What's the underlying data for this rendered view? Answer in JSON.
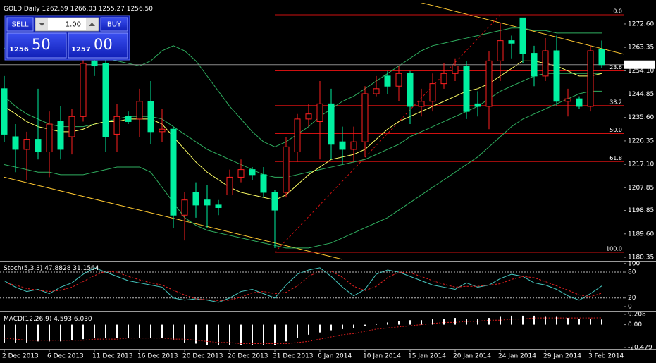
{
  "chart_data": [
    {
      "type": "candlestick",
      "title": "GOLD,Daily",
      "header_values": [
        "1262.69",
        "1266.03",
        "1255.27",
        "1256.50"
      ],
      "categories": [
        "2 Dec 2013",
        null,
        null,
        null,
        "6 Dec 2013",
        null,
        null,
        null,
        "11 Dec 2013",
        null,
        null,
        null,
        "16 Dec 2013",
        null,
        null,
        null,
        "20 Dec 2013",
        null,
        null,
        null,
        "26 Dec 2013",
        null,
        null,
        null,
        "31 Dec 2013",
        null,
        null,
        null,
        "6 Jan 2014",
        null,
        null,
        null,
        "10 Jan 2014",
        null,
        null,
        null,
        "15 Jan 2014",
        null,
        null,
        null,
        "20 Jan 2014",
        null,
        null,
        null,
        "24 Jan 2014",
        null,
        null,
        null,
        "29 Jan 2014",
        null,
        null,
        null,
        "3 Feb 2014",
        null
      ],
      "open": [
        1247,
        1228,
        1223,
        1227,
        1222,
        1234,
        1228,
        1236,
        1258,
        1257,
        1229,
        1236,
        1235,
        1242,
        1230,
        1231,
        1197,
        1206,
        1203,
        1201,
        1205,
        1212,
        1215,
        1213,
        1206,
        1206,
        1222,
        1235,
        1234,
        1241,
        1226,
        1223,
        1226,
        1245,
        1252,
        1248,
        1253,
        1240,
        1242,
        1249,
        1253,
        1256,
        1241,
        1240,
        1258,
        1266,
        1275,
        1261,
        1252,
        1262,
        1242,
        1243,
        1240,
        1262.69
      ],
      "high": [
        1252,
        1233,
        1230,
        1247,
        1238,
        1240,
        1239,
        1266,
        1262,
        1259,
        1241,
        1238,
        1247,
        1250,
        1239,
        1232,
        1206,
        1210,
        1209,
        1203,
        1215,
        1219,
        1216,
        1216,
        1207,
        1228,
        1237,
        1241,
        1250,
        1247,
        1232,
        1232,
        1248,
        1252,
        1254,
        1256,
        1254,
        1247,
        1253,
        1257,
        1259,
        1258,
        1246,
        1262,
        1273,
        1268,
        1275,
        1264,
        1267,
        1268,
        1247,
        1244,
        1264,
        1266.03
      ],
      "low": [
        1226,
        1214,
        1211,
        1219,
        1212,
        1219,
        1221,
        1234,
        1252,
        1222,
        1222,
        1233,
        1228,
        1225,
        1226,
        1192,
        1187,
        1196,
        1192,
        1197,
        1205,
        1210,
        1211,
        1204,
        1184,
        1204,
        1218,
        1232,
        1219,
        1219,
        1217,
        1218,
        1220,
        1244,
        1245,
        1242,
        1233,
        1236,
        1238,
        1247,
        1250,
        1235,
        1236,
        1231,
        1250,
        1259,
        1257,
        1248,
        1250,
        1240,
        1236,
        1239,
        1238,
        1255.27
      ],
      "close": [
        1229,
        1223,
        1227,
        1222,
        1233,
        1223,
        1236,
        1257,
        1256,
        1228,
        1236,
        1234,
        1242,
        1230,
        1231,
        1197,
        1203,
        1201,
        1201,
        1200,
        1212,
        1215,
        1213,
        1206,
        1199,
        1224,
        1235,
        1237,
        1241,
        1225,
        1223,
        1226,
        1245,
        1247,
        1248,
        1253,
        1240,
        1242,
        1249,
        1253,
        1256,
        1238,
        1240,
        1258,
        1266,
        1265,
        1261,
        1252,
        1262,
        1242,
        1243,
        1240,
        1262,
        1256.5
      ],
      "up_color": "#ff2020",
      "down_color": "#00f0a0",
      "bands": {
        "color": "#2fae5f",
        "upper": [
          1263,
          1263,
          1262,
          1262,
          1262,
          1261,
          1261,
          1261,
          1260,
          1259,
          1258,
          1257,
          1256,
          1258,
          1262,
          1264,
          1262,
          1258,
          1252,
          1246,
          1240,
          1235,
          1230,
          1226,
          1224,
          1226,
          1229,
          1232,
          1236,
          1239,
          1242,
          1244,
          1247,
          1250,
          1253,
          1256,
          1259,
          1262,
          1264,
          1265,
          1266,
          1267,
          1268,
          1269,
          1270,
          1271,
          1271,
          1270,
          1270,
          1269,
          1269,
          1269,
          1269,
          1269
        ],
        "middle": [
          1244,
          1240,
          1237,
          1235,
          1233,
          1232,
          1232,
          1232,
          1233,
          1234,
          1235,
          1236,
          1236,
          1236,
          1235,
          1232,
          1229,
          1226,
          1223,
          1221,
          1219,
          1217,
          1215,
          1213,
          1212,
          1212,
          1213,
          1214,
          1215,
          1216,
          1217,
          1218,
          1219,
          1221,
          1223,
          1225,
          1228,
          1230,
          1232,
          1234,
          1236,
          1238,
          1240,
          1243,
          1246,
          1248,
          1250,
          1252,
          1253,
          1253,
          1253,
          1253,
          1253,
          1253
        ],
        "lower": [
          1217,
          1216,
          1215,
          1214,
          1214,
          1213,
          1213,
          1213,
          1214,
          1215,
          1216,
          1216,
          1216,
          1214,
          1208,
          1202,
          1196,
          1193,
          1191,
          1190,
          1189,
          1188,
          1187,
          1186,
          1185,
          1184,
          1184,
          1184,
          1185,
          1186,
          1188,
          1190,
          1192,
          1194,
          1196,
          1199,
          1202,
          1205,
          1208,
          1211,
          1214,
          1217,
          1220,
          1224,
          1228,
          1232,
          1235,
          1237,
          1239,
          1241,
          1243,
          1245,
          1246,
          1246
        ]
      },
      "ma": {
        "color": "#ffff66",
        "values": [
          1240,
          1237,
          1234,
          1232,
          1231,
          1230,
          1230,
          1231,
          1233,
          1234,
          1234,
          1235,
          1235,
          1235,
          1233,
          1228,
          1223,
          1218,
          1214,
          1211,
          1208,
          1206,
          1205,
          1204,
          1203,
          1205,
          1209,
          1213,
          1216,
          1219,
          1220,
          1221,
          1223,
          1227,
          1231,
          1234,
          1236,
          1238,
          1240,
          1242,
          1244,
          1246,
          1247,
          1249,
          1252,
          1255,
          1258,
          1258,
          1257,
          1256,
          1254,
          1252,
          1252,
          1253
        ]
      },
      "fib": {
        "color": "#d01010",
        "x": [
          24,
          44
        ],
        "low": 1182.3,
        "high": 1276.2,
        "levels": [
          {
            "value": 0,
            "label": "0.0"
          },
          {
            "value": 23.6,
            "label": "23.6"
          },
          {
            "value": 38.2,
            "label": "38.2"
          },
          {
            "value": 50,
            "label": "50.0"
          },
          {
            "value": 61.8,
            "label": "61.8"
          },
          {
            "value": 100,
            "label": "100.0"
          }
        ]
      },
      "trendlines": {
        "color": "#ffc830",
        "lines": [
          {
            "x": [
              0,
              30
            ],
            "values": [
              1212,
              1179.5
            ]
          },
          {
            "x": [
              37,
              55
            ],
            "values": [
              1281,
              1260.6
            ]
          }
        ]
      },
      "current_price": {
        "value": 1256.5,
        "label": "1256.50"
      },
      "ylim": [
        1178.95,
        1280.95
      ],
      "yticks": [
        {
          "value": 1272.6,
          "label": "1272.60"
        },
        {
          "value": 1263.35,
          "label": "1263.35"
        },
        {
          "value": 1254.1,
          "label": "1254.10"
        },
        {
          "value": 1244.85,
          "label": "1244.85"
        },
        {
          "value": 1235.6,
          "label": "1235.60"
        },
        {
          "value": 1226.35,
          "label": "1226.35"
        },
        {
          "value": 1217.1,
          "label": "1217.10"
        },
        {
          "value": 1207.85,
          "label": "1207.85"
        },
        {
          "value": 1198.85,
          "label": "1198.85"
        },
        {
          "value": 1189.6,
          "label": "1189.60"
        },
        {
          "value": 1180.35,
          "label": "1180.35"
        }
      ]
    },
    {
      "type": "line",
      "title": "Stoch(5,3,3)",
      "header_values": [
        "47.8828",
        "31.1564"
      ],
      "series": [
        {
          "color": "#46c8c0",
          "dash": false,
          "values": [
            60,
            45,
            35,
            40,
            30,
            45,
            55,
            75,
            90,
            80,
            70,
            60,
            55,
            50,
            45,
            20,
            15,
            18,
            15,
            10,
            20,
            35,
            40,
            30,
            20,
            50,
            75,
            85,
            90,
            70,
            45,
            25,
            40,
            75,
            85,
            80,
            70,
            60,
            50,
            45,
            40,
            55,
            45,
            50,
            65,
            75,
            70,
            55,
            50,
            40,
            25,
            15,
            30,
            47.8828
          ]
        },
        {
          "color": "#e02020",
          "dash": true,
          "values": [
            55,
            50,
            42,
            38,
            35,
            38,
            45,
            58,
            72,
            82,
            80,
            70,
            62,
            55,
            50,
            38,
            27,
            18,
            16,
            14,
            15,
            22,
            32,
            35,
            30,
            33,
            48,
            70,
            83,
            82,
            68,
            47,
            37,
            47,
            67,
            80,
            78,
            70,
            60,
            52,
            45,
            47,
            47,
            50,
            53,
            63,
            70,
            67,
            58,
            48,
            38,
            27,
            23,
            31.1564
          ]
        }
      ],
      "levels": [
        80,
        20
      ],
      "ylim": [
        -8.2,
        102.9
      ],
      "yticks": [
        100,
        80,
        20,
        0
      ]
    },
    {
      "type": "bar",
      "title": "MACD(12,26,9)",
      "header_values": [
        "4.593",
        "6.030"
      ],
      "color": "#ffffff",
      "values": [
        -16,
        -16,
        -16,
        -15,
        -15,
        -15,
        -14,
        -13,
        -12,
        -12,
        -12,
        -12,
        -12,
        -12,
        -12,
        -14,
        -16,
        -17,
        -18,
        -18,
        -18,
        -18,
        -18,
        -18,
        -18,
        -15,
        -12,
        -9,
        -7,
        -5,
        -4,
        -3,
        -1,
        1,
        2,
        3,
        4,
        4,
        5,
        5,
        6,
        5,
        5,
        6,
        7,
        8,
        8,
        8,
        7,
        7,
        6,
        5,
        5,
        4.593
      ],
      "signal": {
        "color": "#e02020",
        "values": [
          -12,
          -13,
          -14,
          -14,
          -14,
          -14,
          -14,
          -14,
          -13,
          -13,
          -13,
          -12,
          -12,
          -12,
          -12,
          -13,
          -13,
          -14,
          -15,
          -16,
          -16,
          -17,
          -17,
          -17,
          -17,
          -17,
          -16,
          -15,
          -13,
          -11,
          -9,
          -8,
          -6,
          -4,
          -3,
          -2,
          -1,
          0,
          1,
          2,
          2,
          3,
          3,
          4,
          4,
          5,
          5,
          6,
          6,
          6,
          6,
          6,
          6,
          6.03
        ]
      },
      "ylim": [
        -20.479,
        9.208
      ],
      "yticks": [
        9.208,
        {
          "value": 0,
          "label": "0.00"
        },
        -20.479
      ]
    }
  ],
  "trade_panel": {
    "sell": "SELL",
    "lot": "1.00",
    "buy": "BUY",
    "bid": [
      "1256",
      "50"
    ],
    "ask": [
      "1257",
      "00"
    ]
  }
}
